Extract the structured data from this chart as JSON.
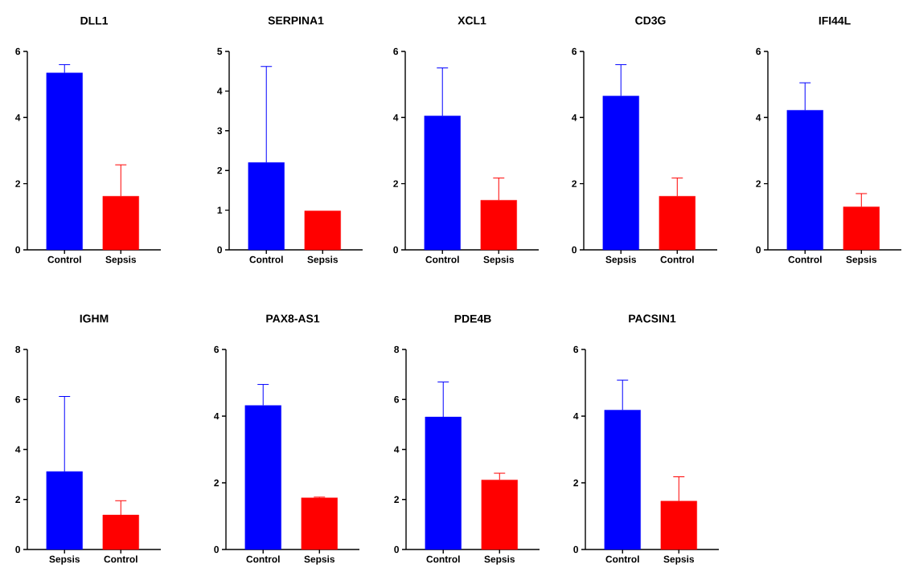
{
  "chart_data": [
    {
      "type": "bar",
      "title": "DLL1",
      "categories": [
        "Control",
        "Sepsis"
      ],
      "values": [
        5.35,
        1.62
      ],
      "colors": [
        "#0000ff",
        "#ff0000"
      ],
      "errors": [
        [
          5.35,
          5.6
        ],
        [
          1.62,
          2.57
        ]
      ],
      "ylim": [
        0,
        6
      ],
      "yticks": [
        0,
        2,
        4,
        6
      ]
    },
    {
      "type": "bar",
      "title": "SERPINA1",
      "categories": [
        "Control",
        "Sepsis"
      ],
      "values": [
        2.2,
        0.98
      ],
      "colors": [
        "#0000ff",
        "#ff0000"
      ],
      "errors": [
        [
          2.2,
          4.62
        ],
        null
      ],
      "ylim": [
        0,
        5
      ],
      "yticks": [
        0,
        1,
        2,
        3,
        4,
        5
      ]
    },
    {
      "type": "bar",
      "title": "XCL1",
      "categories": [
        "Control",
        "Sepsis"
      ],
      "values": [
        4.05,
        1.5
      ],
      "colors": [
        "#0000ff",
        "#ff0000"
      ],
      "errors": [
        [
          4.05,
          5.5
        ],
        [
          1.5,
          2.17
        ]
      ],
      "ylim": [
        0,
        6
      ],
      "yticks": [
        0,
        2,
        4,
        6
      ]
    },
    {
      "type": "bar",
      "title": "CD3G",
      "categories": [
        "Sepsis",
        "Control"
      ],
      "values": [
        4.65,
        1.62
      ],
      "colors": [
        "#0000ff",
        "#ff0000"
      ],
      "errors": [
        [
          4.65,
          5.6
        ],
        [
          1.62,
          2.17
        ]
      ],
      "ylim": [
        0,
        6
      ],
      "yticks": [
        0,
        2,
        4,
        6
      ]
    },
    {
      "type": "bar",
      "title": "IFI44L",
      "categories": [
        "Control",
        "Sepsis"
      ],
      "values": [
        4.22,
        1.3
      ],
      "colors": [
        "#0000ff",
        "#ff0000"
      ],
      "errors": [
        [
          4.22,
          5.05
        ],
        [
          1.3,
          1.7
        ]
      ],
      "ylim": [
        0,
        6
      ],
      "yticks": [
        0,
        2,
        4,
        6
      ]
    },
    {
      "type": "bar",
      "title": "IGHM",
      "categories": [
        "Sepsis",
        "Control"
      ],
      "values": [
        3.12,
        1.38
      ],
      "colors": [
        "#0000ff",
        "#ff0000"
      ],
      "errors": [
        [
          3.12,
          6.12
        ],
        [
          1.38,
          1.95
        ]
      ],
      "ylim": [
        0,
        8
      ],
      "yticks": [
        0,
        2,
        4,
        6,
        8
      ]
    },
    {
      "type": "bar",
      "title": "PAX8-AS1",
      "categories": [
        "Control",
        "Sepsis"
      ],
      "values": [
        4.32,
        1.55
      ],
      "colors": [
        "#0000ff",
        "#ff0000"
      ],
      "errors": [
        [
          4.32,
          4.95
        ],
        [
          1.55,
          1.57
        ]
      ],
      "ylim": [
        0,
        6
      ],
      "yticks": [
        0,
        2,
        4,
        6
      ]
    },
    {
      "type": "bar",
      "title": "PDE4B",
      "categories": [
        "Control",
        "Sepsis"
      ],
      "values": [
        5.3,
        2.78
      ],
      "colors": [
        "#0000ff",
        "#ff0000"
      ],
      "errors": [
        [
          5.3,
          6.7
        ],
        [
          2.78,
          3.05
        ]
      ],
      "ylim": [
        0,
        8
      ],
      "yticks": [
        0,
        2,
        4,
        6,
        8
      ]
    },
    {
      "type": "bar",
      "title": "PACSIN1",
      "categories": [
        "Control",
        "Sepsis"
      ],
      "values": [
        4.18,
        1.45
      ],
      "colors": [
        "#0000ff",
        "#ff0000"
      ],
      "errors": [
        [
          4.18,
          5.08
        ],
        [
          1.45,
          2.18
        ]
      ],
      "ylim": [
        0,
        6
      ],
      "yticks": [
        0,
        2,
        4,
        6
      ]
    }
  ]
}
